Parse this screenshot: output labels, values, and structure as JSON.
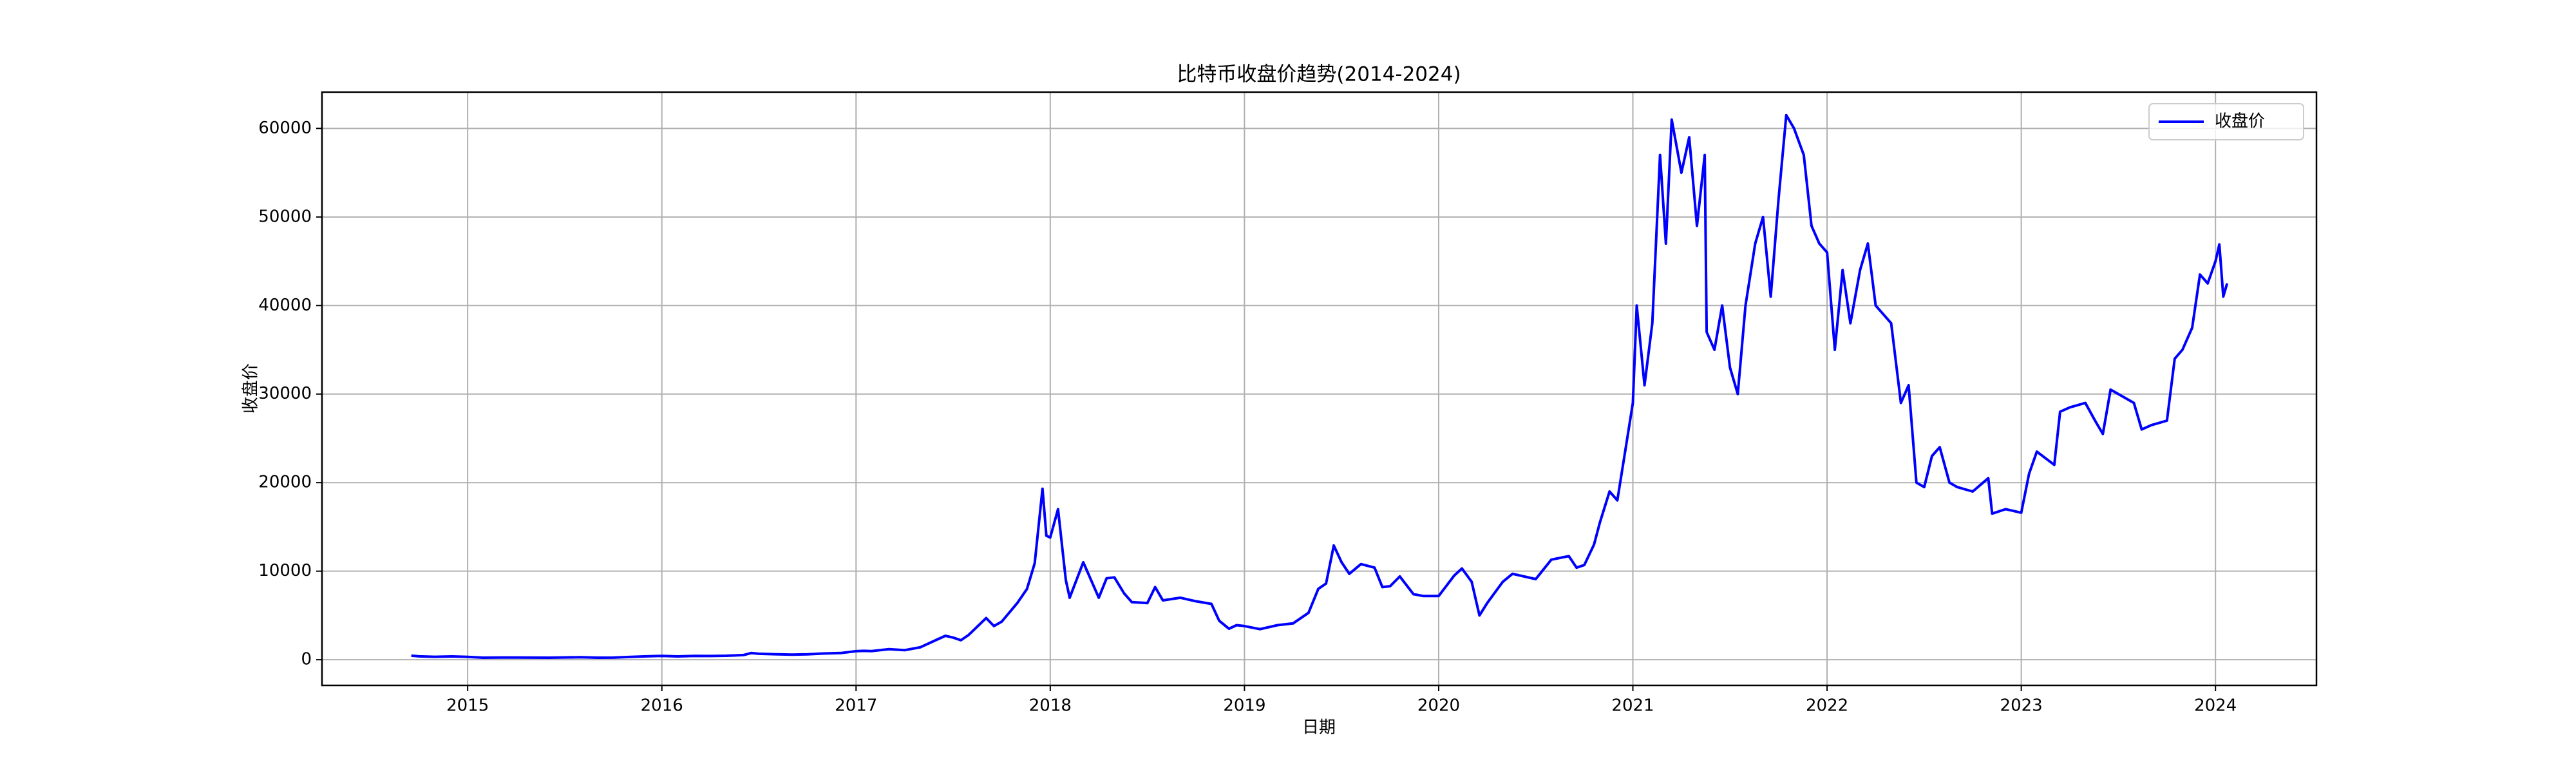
{
  "chart_data": {
    "type": "line",
    "title": "比特币收盘价趋势(2014-2024)",
    "x_label": "日期",
    "y_label": "收盘价",
    "x": [
      2014.71,
      2014.75,
      2014.83,
      2014.92,
      2015.0,
      2015.08,
      2015.17,
      2015.25,
      2015.33,
      2015.42,
      2015.5,
      2015.58,
      2015.67,
      2015.75,
      2015.83,
      2015.92,
      2016.0,
      2016.08,
      2016.17,
      2016.25,
      2016.33,
      2016.42,
      2016.46,
      2016.5,
      2016.58,
      2016.67,
      2016.75,
      2016.83,
      2016.92,
      2017.0,
      2017.04,
      2017.08,
      2017.17,
      2017.25,
      2017.33,
      2017.42,
      2017.46,
      2017.5,
      2017.54,
      2017.58,
      2017.67,
      2017.71,
      2017.75,
      2017.83,
      2017.88,
      2017.92,
      2017.96,
      2017.98,
      2018.0,
      2018.04,
      2018.08,
      2018.1,
      2018.17,
      2018.25,
      2018.29,
      2018.33,
      2018.38,
      2018.42,
      2018.5,
      2018.54,
      2018.58,
      2018.67,
      2018.75,
      2018.83,
      2018.87,
      2018.92,
      2018.96,
      2019.0,
      2019.08,
      2019.17,
      2019.25,
      2019.33,
      2019.38,
      2019.42,
      2019.46,
      2019.5,
      2019.54,
      2019.6,
      2019.67,
      2019.71,
      2019.75,
      2019.8,
      2019.87,
      2019.92,
      2020.0,
      2020.08,
      2020.12,
      2020.17,
      2020.21,
      2020.25,
      2020.33,
      2020.38,
      2020.5,
      2020.58,
      2020.67,
      2020.71,
      2020.75,
      2020.8,
      2020.83,
      2020.88,
      2020.92,
      2020.96,
      2021.0,
      2021.02,
      2021.06,
      2021.1,
      2021.14,
      2021.17,
      2021.2,
      2021.25,
      2021.29,
      2021.33,
      2021.37,
      2021.38,
      2021.42,
      2021.46,
      2021.5,
      2021.54,
      2021.58,
      2021.63,
      2021.67,
      2021.71,
      2021.75,
      2021.79,
      2021.83,
      2021.88,
      2021.92,
      2021.96,
      2022.0,
      2022.04,
      2022.08,
      2022.12,
      2022.17,
      2022.21,
      2022.25,
      2022.33,
      2022.38,
      2022.42,
      2022.46,
      2022.5,
      2022.54,
      2022.58,
      2022.63,
      2022.67,
      2022.75,
      2022.83,
      2022.85,
      2022.92,
      2023.0,
      2023.04,
      2023.08,
      2023.17,
      2023.2,
      2023.25,
      2023.33,
      2023.38,
      2023.42,
      2023.46,
      2023.54,
      2023.58,
      2023.62,
      2023.67,
      2023.75,
      2023.79,
      2023.83,
      2023.88,
      2023.92,
      2023.96,
      2024.0,
      2024.02,
      2024.04,
      2024.06
    ],
    "series": [
      {
        "name": "收盘价",
        "color": "#0000ff",
        "values": [
          457,
          380,
          330,
          375,
          315,
          230,
          250,
          245,
          235,
          225,
          260,
          280,
          230,
          236,
          310,
          380,
          430,
          370,
          435,
          415,
          450,
          530,
          750,
          670,
          620,
          575,
          610,
          700,
          750,
          960,
          1000,
          970,
          1190,
          1080,
          1400,
          2300,
          2700,
          2500,
          2200,
          2800,
          4700,
          3800,
          4300,
          6400,
          8000,
          10900,
          19300,
          14000,
          13800,
          17000,
          9000,
          7000,
          11000,
          7000,
          9200,
          9300,
          7500,
          6500,
          6400,
          8200,
          6700,
          7000,
          6600,
          6300,
          4400,
          3500,
          3900,
          3800,
          3450,
          3900,
          4100,
          5300,
          8000,
          8600,
          12900,
          11000,
          9700,
          10800,
          10400,
          8200,
          8300,
          9400,
          7400,
          7200,
          7200,
          9500,
          10300,
          8800,
          5000,
          6400,
          8800,
          9700,
          9100,
          11300,
          11700,
          10400,
          10700,
          13000,
          15500,
          19000,
          18000,
          23500,
          29000,
          40000,
          31000,
          38000,
          57000,
          47000,
          61000,
          55000,
          59000,
          49000,
          57000,
          37000,
          35000,
          40000,
          33000,
          30000,
          40000,
          47000,
          50000,
          41000,
          52000,
          61500,
          60000,
          57000,
          49000,
          47000,
          46000,
          35000,
          44000,
          38000,
          44000,
          47000,
          40000,
          38000,
          29000,
          31000,
          20000,
          19500,
          23000,
          24000,
          20000,
          19500,
          19000,
          20500,
          16500,
          17000,
          16600,
          21000,
          23500,
          22000,
          28000,
          28500,
          29000,
          27000,
          25500,
          30500,
          29500,
          29000,
          26000,
          26500,
          27000,
          34000,
          35000,
          37500,
          43500,
          42500,
          45000,
          46900,
          41000,
          42500
        ]
      }
    ],
    "xlim": [
      2014.25,
      2024.52
    ],
    "xticks": [
      2015,
      2016,
      2017,
      2018,
      2019,
      2020,
      2021,
      2022,
      2023,
      2024
    ],
    "ylim": [
      -2900,
      64100
    ],
    "yticks": [
      0,
      10000,
      20000,
      30000,
      40000,
      50000,
      60000
    ],
    "grid": true,
    "legend": "upper right"
  }
}
